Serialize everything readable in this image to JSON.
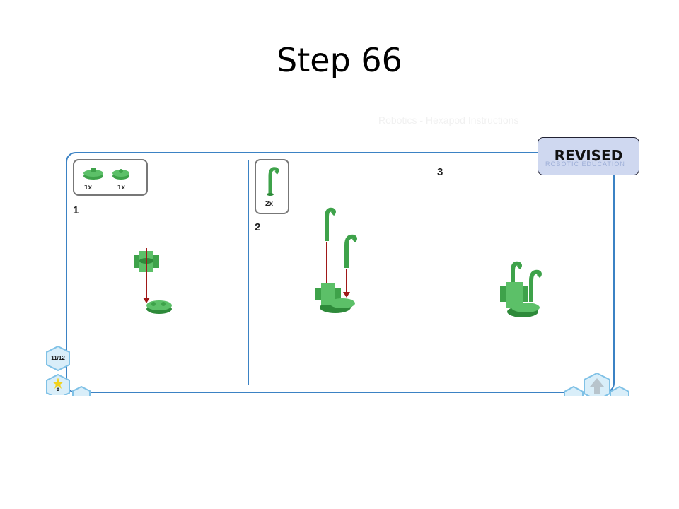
{
  "slide": {
    "title": "Step 66"
  },
  "stamp": {
    "label": "REVISED",
    "sub_label": "ROBOTIC EDUCATION"
  },
  "faint_text": "Robotics - Hexapod Instructions",
  "steps": [
    {
      "number": "1",
      "parts": [
        {
          "qty": "1x"
        },
        {
          "qty": "1x"
        }
      ]
    },
    {
      "number": "2",
      "parts": [
        {
          "qty": "2x"
        }
      ]
    },
    {
      "number": "3",
      "parts": []
    }
  ],
  "nav": {
    "page_indicator": "11/12",
    "step_badge": "8"
  },
  "colors": {
    "border": "#3b82c4",
    "part_green": "#3ea24a",
    "arrow": "#a01818",
    "stamp_bg": "#cfd8f0"
  }
}
